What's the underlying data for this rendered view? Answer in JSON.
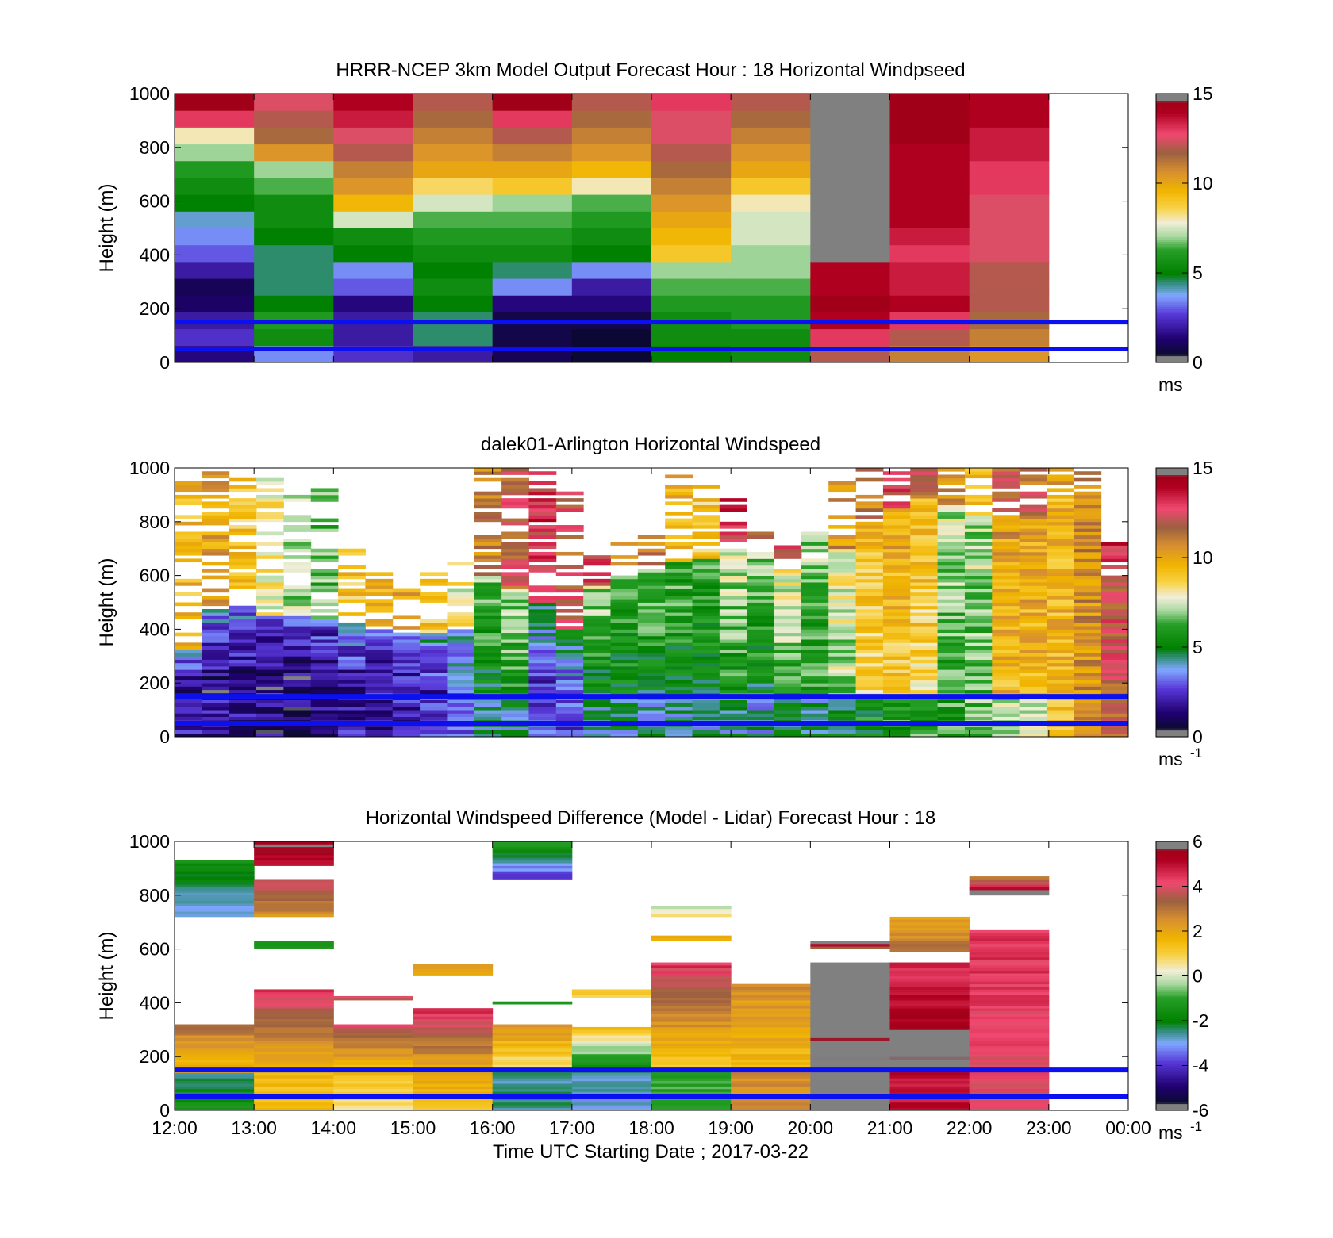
{
  "chart_data": [
    {
      "type": "heatmap",
      "title": "HRRR-NCEP 3km Model Output   Forecast Hour : 18 Horizontal Windpseed",
      "ylabel": "Height (m)",
      "xlabel": "",
      "ylim": [
        0,
        1000
      ],
      "yticks": [
        "0",
        "200",
        "400",
        "600",
        "800",
        "1000"
      ],
      "xticks": [
        "12:00",
        "13:00",
        "14:00",
        "15:00",
        "16:00",
        "17:00",
        "18:00",
        "19:00",
        "20:00",
        "21:00",
        "22:00",
        "23:00",
        "00:00"
      ],
      "xtick_labels_shown": false,
      "colorbar": {
        "min": 0,
        "max": 15,
        "ticks": [
          "0",
          "5",
          "10",
          "15"
        ],
        "unit_label": "ms",
        "unit_sup": ""
      },
      "reference_lines_m": [
        150,
        50
      ],
      "reference_line_color": "#0a10f0",
      "columns": [
        {
          "hour": "12:00",
          "values": [
            1.5,
            2.5,
            2.0,
            1.2,
            1.0,
            2.0,
            3.0,
            3.5,
            4.0,
            5.0,
            5.5,
            6.0,
            7.0,
            8.0,
            13.0,
            14.5
          ]
        },
        {
          "hour": "13:00",
          "values": [
            3.5,
            5.5,
            6.0,
            5.0,
            4.5,
            4.5,
            4.5,
            5.0,
            5.5,
            5.5,
            6.5,
            7.0,
            10.5,
            11.5,
            12.0,
            12.5
          ]
        },
        {
          "hour": "14:00",
          "values": [
            2.5,
            2.0,
            2.0,
            1.5,
            3.0,
            3.5,
            5.0,
            5.5,
            7.5,
            9.5,
            10.5,
            11.0,
            12.0,
            12.5,
            13.5,
            14.0
          ]
        },
        {
          "hour": "15:00",
          "values": [
            2.0,
            4.5,
            4.5,
            5.0,
            5.5,
            5.0,
            5.5,
            6.0,
            6.5,
            7.5,
            8.5,
            10.0,
            10.5,
            11.0,
            11.5,
            12.0
          ]
        },
        {
          "hour": "16:00",
          "values": [
            1.0,
            0.8,
            0.8,
            1.5,
            3.5,
            4.5,
            5.5,
            6.0,
            6.5,
            7.0,
            9.0,
            10.0,
            11.0,
            12.0,
            13.0,
            14.5
          ]
        },
        {
          "hour": "17:00",
          "values": [
            0.5,
            0.5,
            0.8,
            1.5,
            2.0,
            3.5,
            5.0,
            5.5,
            6.0,
            6.5,
            8.0,
            9.5,
            10.5,
            11.0,
            11.5,
            12.0
          ]
        },
        {
          "hour": "18:00",
          "values": [
            5.0,
            5.5,
            5.5,
            6.0,
            6.5,
            7.0,
            9.0,
            9.5,
            10.0,
            10.5,
            11.0,
            11.5,
            12.0,
            12.5,
            12.5,
            13.0
          ]
        },
        {
          "hour": "19:00",
          "values": [
            5.5,
            5.5,
            6.0,
            6.0,
            6.5,
            7.0,
            7.0,
            7.5,
            7.5,
            8.0,
            9.0,
            10.0,
            10.5,
            11.0,
            11.5,
            12.0
          ]
        },
        {
          "hour": "20:00",
          "values": [
            12.0,
            13.0,
            14.0,
            14.5,
            14.0,
            14.0,
            15.0,
            15.0,
            15.0,
            15.0,
            15.0,
            15.0,
            15.0,
            15.0,
            15.0,
            15.0
          ]
        },
        {
          "hour": "21:00",
          "values": [
            11.0,
            12.0,
            13.0,
            14.0,
            13.5,
            13.5,
            13.0,
            13.5,
            14.0,
            14.0,
            14.0,
            14.0,
            14.0,
            14.5,
            14.5,
            14.5
          ]
        },
        {
          "hour": "22:00",
          "values": [
            10.5,
            11.0,
            11.5,
            12.0,
            12.0,
            12.0,
            12.5,
            12.5,
            12.5,
            12.5,
            13.0,
            13.0,
            13.5,
            13.5,
            14.0,
            14.0
          ]
        }
      ]
    },
    {
      "type": "heatmap",
      "title": "dalek01-Arlington  Horizontal Windspeed",
      "ylabel": "Height (m)",
      "xlabel": "",
      "ylim": [
        0,
        1000
      ],
      "yticks": [
        "0",
        "200",
        "400",
        "600",
        "800",
        "1000"
      ],
      "xticks": [
        "12:00",
        "13:00",
        "14:00",
        "15:00",
        "16:00",
        "17:00",
        "18:00",
        "19:00",
        "20:00",
        "21:00",
        "22:00",
        "23:00",
        "00:00"
      ],
      "xtick_labels_shown": false,
      "colorbar": {
        "min": 0,
        "max": 15,
        "ticks": [
          "0",
          "5",
          "10",
          "15"
        ],
        "unit_label": "ms",
        "unit_sup": "-1"
      },
      "reference_lines_m": [
        150,
        50
      ],
      "reference_line_color": "#0a10f0",
      "profiles": [
        {
          "hour": "12:00",
          "low": 2.0,
          "mid": 1.2,
          "up": 9.5,
          "t1": 320,
          "t2": 1000
        },
        {
          "hour": "12:20",
          "low": 2.0,
          "mid": 1.0,
          "up": 10.0,
          "t1": 470,
          "t2": 1000
        },
        {
          "hour": "12:40",
          "low": 1.8,
          "mid": 1.0,
          "up": 9.0,
          "t1": 480,
          "t2": 980
        },
        {
          "hour": "13:00",
          "low": 1.5,
          "mid": 0.8,
          "up": 8.0,
          "t1": 450,
          "t2": 960
        },
        {
          "hour": "13:20",
          "low": 1.5,
          "mid": 1.0,
          "up": 7.0,
          "t1": 440,
          "t2": 940
        },
        {
          "hour": "13:40",
          "low": 1.8,
          "mid": 1.2,
          "up": 6.5,
          "t1": 430,
          "t2": 920
        },
        {
          "hour": "14:00",
          "low": 2.0,
          "mid": 1.5,
          "up": 9.0,
          "t1": 420,
          "t2": 700
        },
        {
          "hour": "14:20",
          "low": 2.0,
          "mid": 1.2,
          "up": 9.5,
          "t1": 400,
          "t2": 600
        },
        {
          "hour": "14:40",
          "low": 2.2,
          "mid": 1.5,
          "up": 10.0,
          "t1": 380,
          "t2": 560
        },
        {
          "hour": "15:00",
          "low": 3.0,
          "mid": 2.0,
          "up": 9.0,
          "t1": 380,
          "t2": 600
        },
        {
          "hour": "15:20",
          "low": 3.5,
          "mid": 3.0,
          "up": 8.0,
          "t1": 400,
          "t2": 640
        },
        {
          "hour": "15:40",
          "low": 4.5,
          "mid": 5.0,
          "up": 11.0,
          "t1": 600,
          "t2": 1000
        },
        {
          "hour": "16:00",
          "low": 4.5,
          "mid": 5.5,
          "up": 12.0,
          "t1": 550,
          "t2": 1000
        },
        {
          "hour": "16:20",
          "low": 3.0,
          "mid": 2.0,
          "up": 13.0,
          "t1": 500,
          "t2": 1000
        },
        {
          "hour": "16:40",
          "low": 3.0,
          "mid": 2.5,
          "up": 12.0,
          "t1": 400,
          "t2": 900
        },
        {
          "hour": "17:00",
          "low": 4.5,
          "mid": 5.0,
          "up": 12.5,
          "t1": 560,
          "t2": 700
        },
        {
          "hour": "17:20",
          "low": 4.5,
          "mid": 5.0,
          "up": 10.5,
          "t1": 600,
          "t2": 720
        },
        {
          "hour": "17:40",
          "low": 4.0,
          "mid": 5.0,
          "up": 11.0,
          "t1": 620,
          "t2": 740
        },
        {
          "hour": "18:00",
          "low": 4.5,
          "mid": 5.0,
          "up": 9.5,
          "t1": 640,
          "t2": 1000
        },
        {
          "hour": "18:20",
          "low": 4.0,
          "mid": 5.0,
          "up": 9.0,
          "t1": 660,
          "t2": 960
        },
        {
          "hour": "18:40",
          "low": 4.5,
          "mid": 5.5,
          "up": 13.0,
          "t1": 700,
          "t2": 900
        },
        {
          "hour": "19:00",
          "low": 4.0,
          "mid": 5.0,
          "up": 12.0,
          "t1": 680,
          "t2": 760
        },
        {
          "hour": "19:20",
          "low": 4.5,
          "mid": 6.0,
          "up": 12.5,
          "t1": 620,
          "t2": 720
        },
        {
          "hour": "19:40",
          "low": 4.5,
          "mid": 6.0,
          "up": 7.0,
          "t1": 640,
          "t2": 760
        },
        {
          "hour": "20:00",
          "low": 5.0,
          "mid": 7.0,
          "up": 10.5,
          "t1": 700,
          "t2": 960
        },
        {
          "hour": "20:20",
          "low": 5.5,
          "mid": 8.5,
          "up": 11.0,
          "t1": 800,
          "t2": 1000
        },
        {
          "hour": "20:40",
          "low": 6.0,
          "mid": 9.0,
          "up": 12.5,
          "t1": 850,
          "t2": 1000
        },
        {
          "hour": "21:00",
          "low": 6.0,
          "mid": 8.5,
          "up": 11.5,
          "t1": 880,
          "t2": 1000
        },
        {
          "hour": "21:20",
          "low": 6.0,
          "mid": 6.0,
          "up": 10.5,
          "t1": 860,
          "t2": 1000
        },
        {
          "hour": "21:40",
          "low": 6.5,
          "mid": 6.5,
          "up": 9.0,
          "t1": 820,
          "t2": 1000
        },
        {
          "hour": "22:00",
          "low": 7.0,
          "mid": 9.5,
          "up": 12.0,
          "t1": 820,
          "t2": 1000
        },
        {
          "hour": "22:20",
          "low": 7.5,
          "mid": 9.5,
          "up": 11.5,
          "t1": 820,
          "t2": 1000
        },
        {
          "hour": "22:40",
          "low": 9.5,
          "mid": 9.5,
          "up": 10.0,
          "t1": 900,
          "t2": 1000
        },
        {
          "hour": "23:00",
          "low": 10.5,
          "mid": 10.5,
          "up": 11.0,
          "t1": 900,
          "t2": 1000
        },
        {
          "hour": "23:20",
          "low": 12.0,
          "mid": 12.0,
          "up": 13.0,
          "t1": 600,
          "t2": 720
        }
      ]
    },
    {
      "type": "heatmap",
      "title": "Horizontal Windspeed Difference (Model - Lidar) Forecast Hour : 18",
      "ylabel": "Height (m)",
      "xlabel": "Time UTC  Starting Date ; 2017-03-22",
      "ylim": [
        0,
        1000
      ],
      "yticks": [
        "0",
        "200",
        "400",
        "600",
        "800",
        "1000"
      ],
      "xticks": [
        "12:00",
        "13:00",
        "14:00",
        "15:00",
        "16:00",
        "17:00",
        "18:00",
        "19:00",
        "20:00",
        "21:00",
        "22:00",
        "23:00",
        "00:00"
      ],
      "xtick_labels_shown": true,
      "colorbar": {
        "min": -6,
        "max": 6,
        "ticks": [
          "-6",
          "-4",
          "-2",
          "0",
          "2",
          "4",
          "6"
        ],
        "unit_label": "ms",
        "unit_sup": "-1"
      },
      "reference_lines_m": [
        150,
        50
      ],
      "reference_line_color": "#0a10f0",
      "segments": [
        {
          "hour": "12:00",
          "from": 0,
          "to": 140,
          "v0": -1.5,
          "v1": -2.5
        },
        {
          "hour": "12:00",
          "from": 140,
          "to": 320,
          "v0": 1.5,
          "v1": 3.0
        },
        {
          "hour": "12:00",
          "from": 720,
          "to": 930,
          "v0": -3.0,
          "v1": -1.5
        },
        {
          "hour": "13:00",
          "from": 0,
          "to": 150,
          "v0": 1.5,
          "v1": 1.5
        },
        {
          "hour": "13:00",
          "from": 150,
          "to": 450,
          "v0": 1.5,
          "v1": 4.5
        },
        {
          "hour": "13:00",
          "from": 600,
          "to": 630,
          "v0": -1.5,
          "v1": -1.5
        },
        {
          "hour": "13:00",
          "from": 720,
          "to": 860,
          "v0": 2.5,
          "v1": 4.0
        },
        {
          "hour": "13:00",
          "from": 910,
          "to": 1000,
          "v0": 5.0,
          "v1": 5.5
        },
        {
          "hour": "14:00",
          "from": 0,
          "to": 150,
          "v0": 0.5,
          "v1": 1.5
        },
        {
          "hour": "14:00",
          "from": 150,
          "to": 320,
          "v0": 1.5,
          "v1": 4.0
        },
        {
          "hour": "14:00",
          "from": 410,
          "to": 425,
          "v0": 4.0,
          "v1": 4.0
        },
        {
          "hour": "15:00",
          "from": 0,
          "to": 150,
          "v0": 1.5,
          "v1": 2.0
        },
        {
          "hour": "15:00",
          "from": 150,
          "to": 380,
          "v0": 2.0,
          "v1": 4.5
        },
        {
          "hour": "15:00",
          "from": 500,
          "to": 545,
          "v0": 2.0,
          "v1": 2.0
        },
        {
          "hour": "16:00",
          "from": 0,
          "to": 150,
          "v0": -2.5,
          "v1": -2.5
        },
        {
          "hour": "16:00",
          "from": 150,
          "to": 320,
          "v0": 0.5,
          "v1": 2.5
        },
        {
          "hour": "16:00",
          "from": 395,
          "to": 405,
          "v0": -1.0,
          "v1": -1.0
        },
        {
          "hour": "16:00",
          "from": 860,
          "to": 1000,
          "v0": -4.0,
          "v1": -1.0
        },
        {
          "hour": "17:00",
          "from": 0,
          "to": 150,
          "v0": -3.0,
          "v1": -2.5
        },
        {
          "hour": "17:00",
          "from": 150,
          "to": 310,
          "v0": -2.0,
          "v1": 1.5
        },
        {
          "hour": "17:00",
          "from": 420,
          "to": 450,
          "v0": 1.0,
          "v1": 1.0
        },
        {
          "hour": "18:00",
          "from": 0,
          "to": 150,
          "v0": -1.0,
          "v1": -1.0
        },
        {
          "hour": "18:00",
          "from": 150,
          "to": 550,
          "v0": 1.0,
          "v1": 4.5
        },
        {
          "hour": "18:00",
          "from": 630,
          "to": 650,
          "v0": 2.0,
          "v1": 2.0
        },
        {
          "hour": "18:00",
          "from": 720,
          "to": 760,
          "v0": 1.0,
          "v1": -0.5
        },
        {
          "hour": "19:00",
          "from": 0,
          "to": 150,
          "v0": 2.5,
          "v1": 2.5
        },
        {
          "hour": "19:00",
          "from": 150,
          "to": 470,
          "v0": 1.5,
          "v1": 2.5
        },
        {
          "hour": "20:00",
          "from": 0,
          "to": 550,
          "v0": 6.0,
          "v1": 6.0
        },
        {
          "hour": "20:00",
          "from": 600,
          "to": 630,
          "v0": 3.5,
          "v1": 6.0
        },
        {
          "hour": "21:00",
          "from": 0,
          "to": 150,
          "v0": 5.0,
          "v1": 5.0
        },
        {
          "hour": "21:00",
          "from": 150,
          "to": 300,
          "v0": 6.0,
          "v1": 6.0
        },
        {
          "hour": "21:00",
          "from": 300,
          "to": 550,
          "v0": 5.5,
          "v1": 4.5
        },
        {
          "hour": "21:00",
          "from": 590,
          "to": 720,
          "v0": 3.0,
          "v1": 2.0
        },
        {
          "hour": "22:00",
          "from": 0,
          "to": 670,
          "v0": 4.0,
          "v1": 4.5
        },
        {
          "hour": "22:00",
          "from": 800,
          "to": 870,
          "v0": 6.0,
          "v1": 3.0
        }
      ]
    }
  ]
}
